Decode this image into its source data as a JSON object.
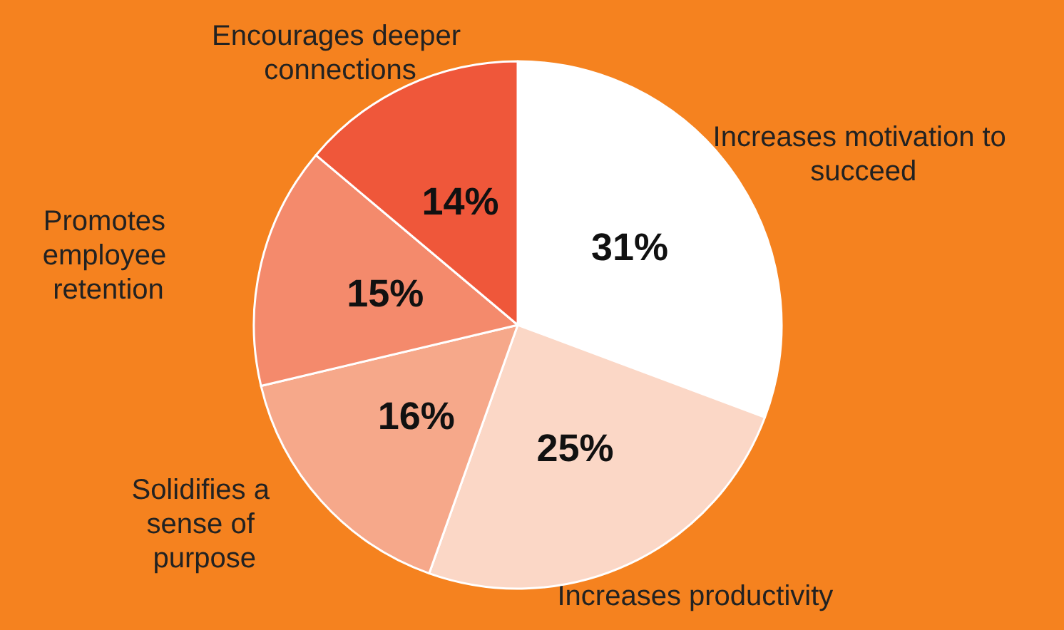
{
  "chart_data": {
    "type": "pie",
    "categories": [
      "Increases motivation to succeed",
      "Increases productivity",
      "Solidifies a sense of purpose",
      "Promotes employee retention",
      "Encourages deeper connections"
    ],
    "values": [
      31,
      25,
      16,
      15,
      14
    ],
    "colors": [
      "#ffffff",
      "#fbd7c6",
      "#f6a88a",
      "#f48a6c",
      "#ef573a"
    ],
    "value_labels": [
      "31%",
      "25%",
      "16%",
      "15%",
      "14%"
    ]
  }
}
